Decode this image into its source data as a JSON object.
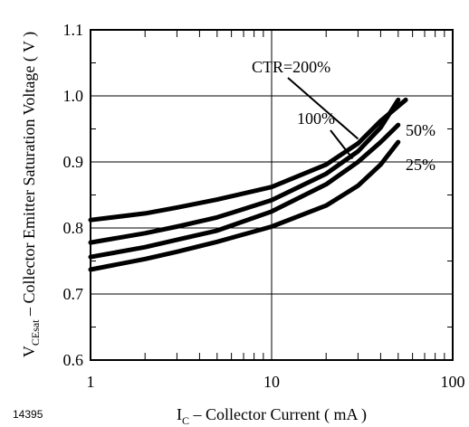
{
  "chart_data": {
    "type": "line",
    "x_scale": "log",
    "xlim": [
      1,
      100
    ],
    "ylim": [
      0.6,
      1.1
    ],
    "x_ticks": [
      "1",
      "10",
      "100"
    ],
    "y_ticks": [
      "0.6",
      "0.7",
      "0.8",
      "0.9",
      "1.0",
      "1.1"
    ],
    "xlabel": {
      "main": "I",
      "sub": "C",
      "rest": " – Collector Current ( mA )"
    },
    "ylabel": {
      "main": "V",
      "sub": "CEsat",
      "rest": " – Collector Emitter Saturation Voltage ( V )"
    },
    "grid": true,
    "series": [
      {
        "name": "CTR=200%",
        "x": [
          1,
          2,
          3,
          5,
          10,
          20,
          30,
          40,
          55
        ],
        "y": [
          0.812,
          0.822,
          0.831,
          0.843,
          0.862,
          0.896,
          0.928,
          0.962,
          0.994
        ]
      },
      {
        "name": "100%",
        "x": [
          1,
          2,
          3,
          5,
          10,
          20,
          30,
          40,
          50
        ],
        "y": [
          0.778,
          0.792,
          0.802,
          0.816,
          0.842,
          0.882,
          0.916,
          0.952,
          0.994
        ]
      },
      {
        "name": "50%",
        "x": [
          1,
          2,
          3,
          5,
          10,
          20,
          30,
          40,
          50
        ],
        "y": [
          0.756,
          0.771,
          0.782,
          0.796,
          0.825,
          0.866,
          0.9,
          0.93,
          0.956
        ]
      },
      {
        "name": "25%",
        "x": [
          1,
          2,
          3,
          5,
          10,
          20,
          30,
          40,
          50
        ],
        "y": [
          0.737,
          0.753,
          0.764,
          0.779,
          0.802,
          0.834,
          0.864,
          0.896,
          0.93
        ]
      }
    ]
  },
  "figure_id": "14395"
}
